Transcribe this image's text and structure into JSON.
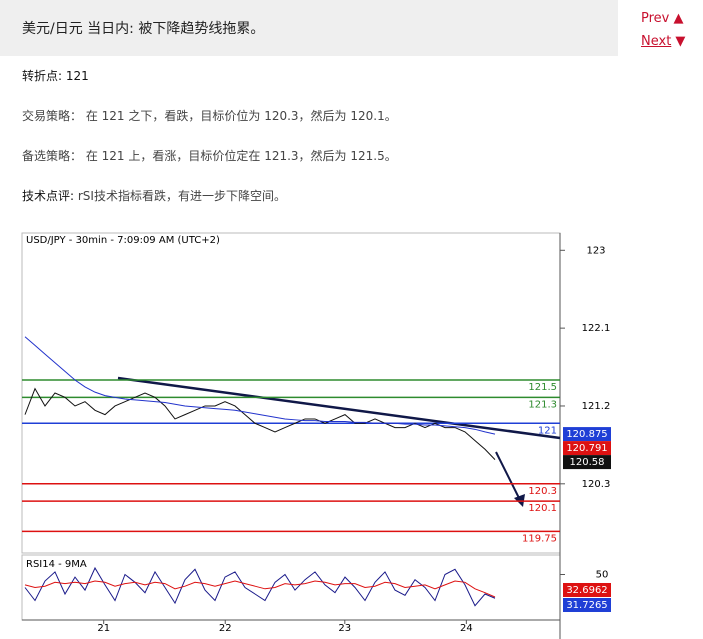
{
  "header": {
    "title": "美元/日元 当日内: 被下降趋势线拖累。"
  },
  "nav": {
    "prev": "Prev",
    "next": "Next"
  },
  "body": {
    "pivot_label": "转折点:",
    "pivot_text": "121",
    "strategy_label": "交易策略：",
    "strategy_text": "在 121 之下，看跌，目标价位为 120.3，然后为 120.1。",
    "alt_label": "备选策略：",
    "alt_text": "在 121 上，看涨，目标价位定在 121.3，然后为 121.5。",
    "comment_label": "技术点评:",
    "comment_text": "rSI技术指标看跌，有进一步下降空间。"
  },
  "chart_data": {
    "type": "line",
    "title": "USD/JPY - 30min - 7:09:09 AM (UTC+2)",
    "xlim": [
      0,
      54
    ],
    "xticks": [
      {
        "value": 8.2,
        "label": "21"
      },
      {
        "value": 20.4,
        "label": "22"
      },
      {
        "value": 32.4,
        "label": "23"
      },
      {
        "value": 44.6,
        "label": "24"
      }
    ],
    "ylim": [
      119.5,
      123.2
    ],
    "yticks": [
      123.0,
      122.1,
      121.2,
      120.3
    ],
    "series": [
      {
        "color": "#111111",
        "values": [
          121.1,
          121.4,
          121.2,
          121.35,
          121.3,
          121.2,
          121.25,
          121.15,
          121.1,
          121.2,
          121.25,
          121.3,
          121.35,
          121.3,
          121.2,
          121.05,
          121.1,
          121.15,
          121.2,
          121.2,
          121.25,
          121.2,
          121.1,
          121.0,
          120.95,
          120.9,
          120.95,
          121.0,
          121.05,
          121.05,
          121.0,
          121.05,
          121.1,
          121.0,
          121.0,
          121.05,
          121.0,
          120.95,
          120.95,
          121.0,
          120.95,
          121.0,
          120.95,
          120.95,
          120.9,
          120.8,
          120.7,
          120.58
        ]
      },
      {
        "color": "#2233cc",
        "values": [
          122.0,
          121.9,
          121.8,
          121.7,
          121.6,
          121.5,
          121.42,
          121.36,
          121.32,
          121.3,
          121.28,
          121.27,
          121.26,
          121.25,
          121.24,
          121.22,
          121.2,
          121.19,
          121.18,
          121.17,
          121.16,
          121.15,
          121.13,
          121.11,
          121.09,
          121.07,
          121.05,
          121.04,
          121.03,
          121.03,
          121.02,
          121.02,
          121.02,
          121.01,
          121.01,
          121.0,
          121.0,
          121.0,
          120.99,
          120.99,
          120.98,
          120.98,
          120.97,
          120.96,
          120.95,
          120.93,
          120.9,
          120.875
        ]
      }
    ],
    "levels": [
      {
        "value": 121.5,
        "color": "#2e8b2e"
      },
      {
        "value": 121.3,
        "color": "#2e8b2e"
      },
      {
        "value": 121,
        "color": "#1f3fd6"
      },
      {
        "value": 120.3,
        "color": "#dd1111"
      },
      {
        "value": 120.1,
        "color": "#dd1111"
      },
      {
        "value": 119.75,
        "color": "#dd1111"
      }
    ],
    "price_labels": [
      {
        "value": 120.875,
        "color": "#1f3fd6"
      },
      {
        "value": 120.791,
        "color": "#dd1111"
      },
      {
        "value": 120.58,
        "color": "#111111"
      }
    ],
    "rsi": {
      "title": "RSI14 - 9MA",
      "ylim": [
        15,
        65
      ],
      "yticks": [
        50
      ],
      "series": [
        {
          "color": "#1a1a8a",
          "values": [
            40,
            30,
            45,
            52,
            35,
            48,
            38,
            55,
            42,
            30,
            50,
            44,
            36,
            52,
            40,
            28,
            46,
            54,
            38,
            30,
            48,
            52,
            40,
            35,
            30,
            44,
            50,
            38,
            46,
            52,
            42,
            36,
            48,
            40,
            30,
            44,
            52,
            38,
            34,
            46,
            40,
            30,
            50,
            54,
            42,
            26,
            35,
            31.7265
          ]
        },
        {
          "color": "#dd1111",
          "values": [
            42,
            40,
            41,
            44,
            43,
            44,
            43,
            45,
            44,
            41,
            43,
            44,
            42,
            44,
            43,
            39,
            41,
            44,
            43,
            41,
            43,
            45,
            43,
            41,
            39,
            40,
            43,
            42,
            43,
            45,
            44,
            42,
            43,
            43,
            40,
            41,
            44,
            43,
            40,
            41,
            42,
            39,
            42,
            45,
            44,
            39,
            36,
            32.6962
          ]
        }
      ],
      "labels": [
        {
          "value": 32.6962,
          "color": "#dd1111"
        },
        {
          "value": 31.7265,
          "color": "#1f3fd6"
        }
      ]
    }
  }
}
